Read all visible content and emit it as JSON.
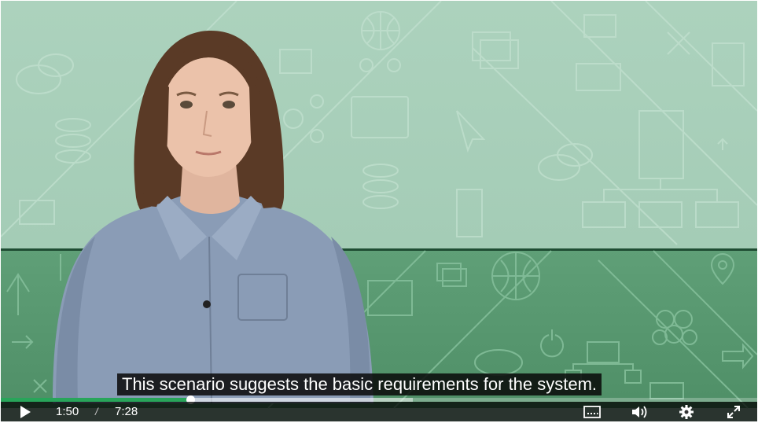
{
  "video": {
    "caption": "This scenario suggests the basic requirements for the system.",
    "played_fraction": 0.25,
    "buffered_fraction": 0.545
  },
  "controls": {
    "current_time": "1:50",
    "separator": "/",
    "duration": "7:28"
  },
  "icons": [
    "play-icon",
    "captions-icon",
    "volume-icon",
    "settings-icon",
    "fullscreen-icon"
  ],
  "colors": {
    "upper_background": "#acd2bd",
    "lower_background": "#5a9a72",
    "progress_played": "#28a55a",
    "control_bar": "#000000"
  }
}
